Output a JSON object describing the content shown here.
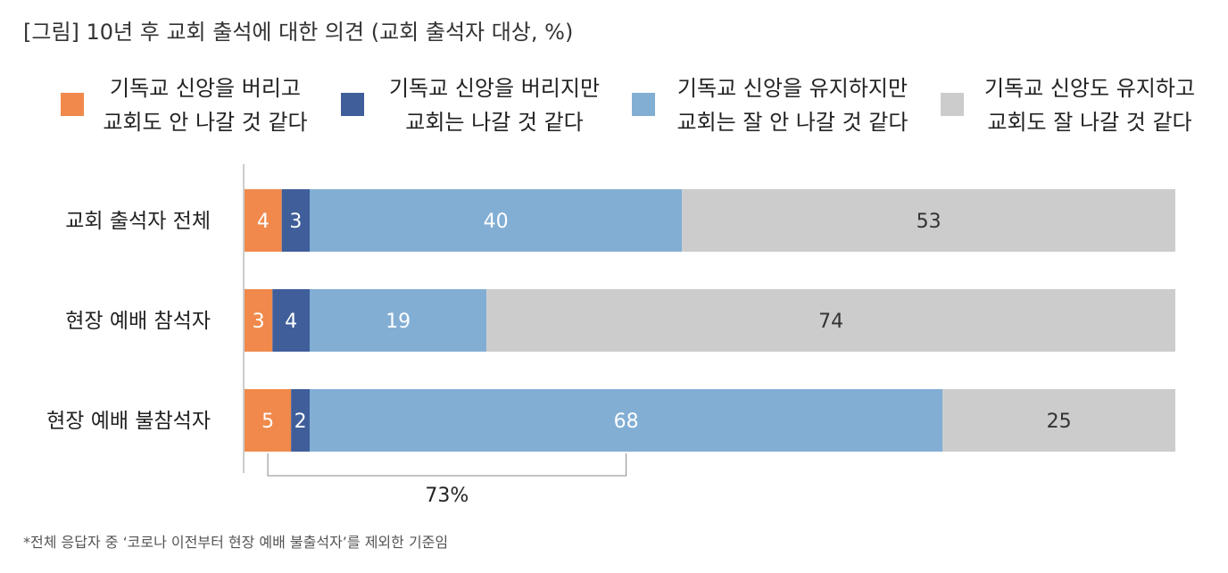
{
  "title": "[그림] 10년 후 교회 출석에 대한 의견 (교회 출석자 대상, %)",
  "legend": [
    {
      "line1": "기독교 신앙을 버리고",
      "line2": "교회도 안 나갈 것 같다",
      "color": "#f0894b"
    },
    {
      "line1": "기독교 신앙을 버리지만",
      "line2": "교회는 나갈 것 같다",
      "color": "#3f5e9a"
    },
    {
      "line1": "기독교 신앙을 유지하지만",
      "line2": "교회는 잘 안 나갈 것 같다",
      "color": "#82aed4"
    },
    {
      "line1": "기독교 신앙도 유지하고",
      "line2": "교회도 잘 나갈 것 같다",
      "color": "#cccccc"
    }
  ],
  "chart_data": {
    "type": "bar",
    "orientation": "horizontal",
    "stacked": true,
    "categories": [
      "교회 출석자 전체",
      "현장 예배 참석자",
      "현장 예배 불참석자"
    ],
    "series": [
      {
        "name": "기독교 신앙을 버리고 교회도 안 나갈 것 같다",
        "values": [
          4,
          3,
          5
        ],
        "color": "#f0894b",
        "label_color": "#ffffff"
      },
      {
        "name": "기독교 신앙을 버리지만 교회는 나갈 것 같다",
        "values": [
          3,
          4,
          2
        ],
        "color": "#3f5e9a",
        "label_color": "#ffffff"
      },
      {
        "name": "기독교 신앙을 유지하지만 교회는 잘 안 나갈 것 같다",
        "values": [
          40,
          19,
          68
        ],
        "color": "#82aed4",
        "label_color": "#ffffff"
      },
      {
        "name": "기독교 신앙도 유지하고 교회도 잘 나갈 것 같다",
        "values": [
          53,
          74,
          25
        ],
        "color": "#cccccc",
        "label_color": "#333333"
      }
    ],
    "xlim": [
      0,
      100
    ],
    "grid": false,
    "legend_position": "top",
    "annotation": {
      "category": "현장 예배 불참석자",
      "label": "73%"
    }
  },
  "footnote": "*전체 응답자 중 ‘코로나 이전부터 현장 예배 불출석자’를 제외한 기준임"
}
